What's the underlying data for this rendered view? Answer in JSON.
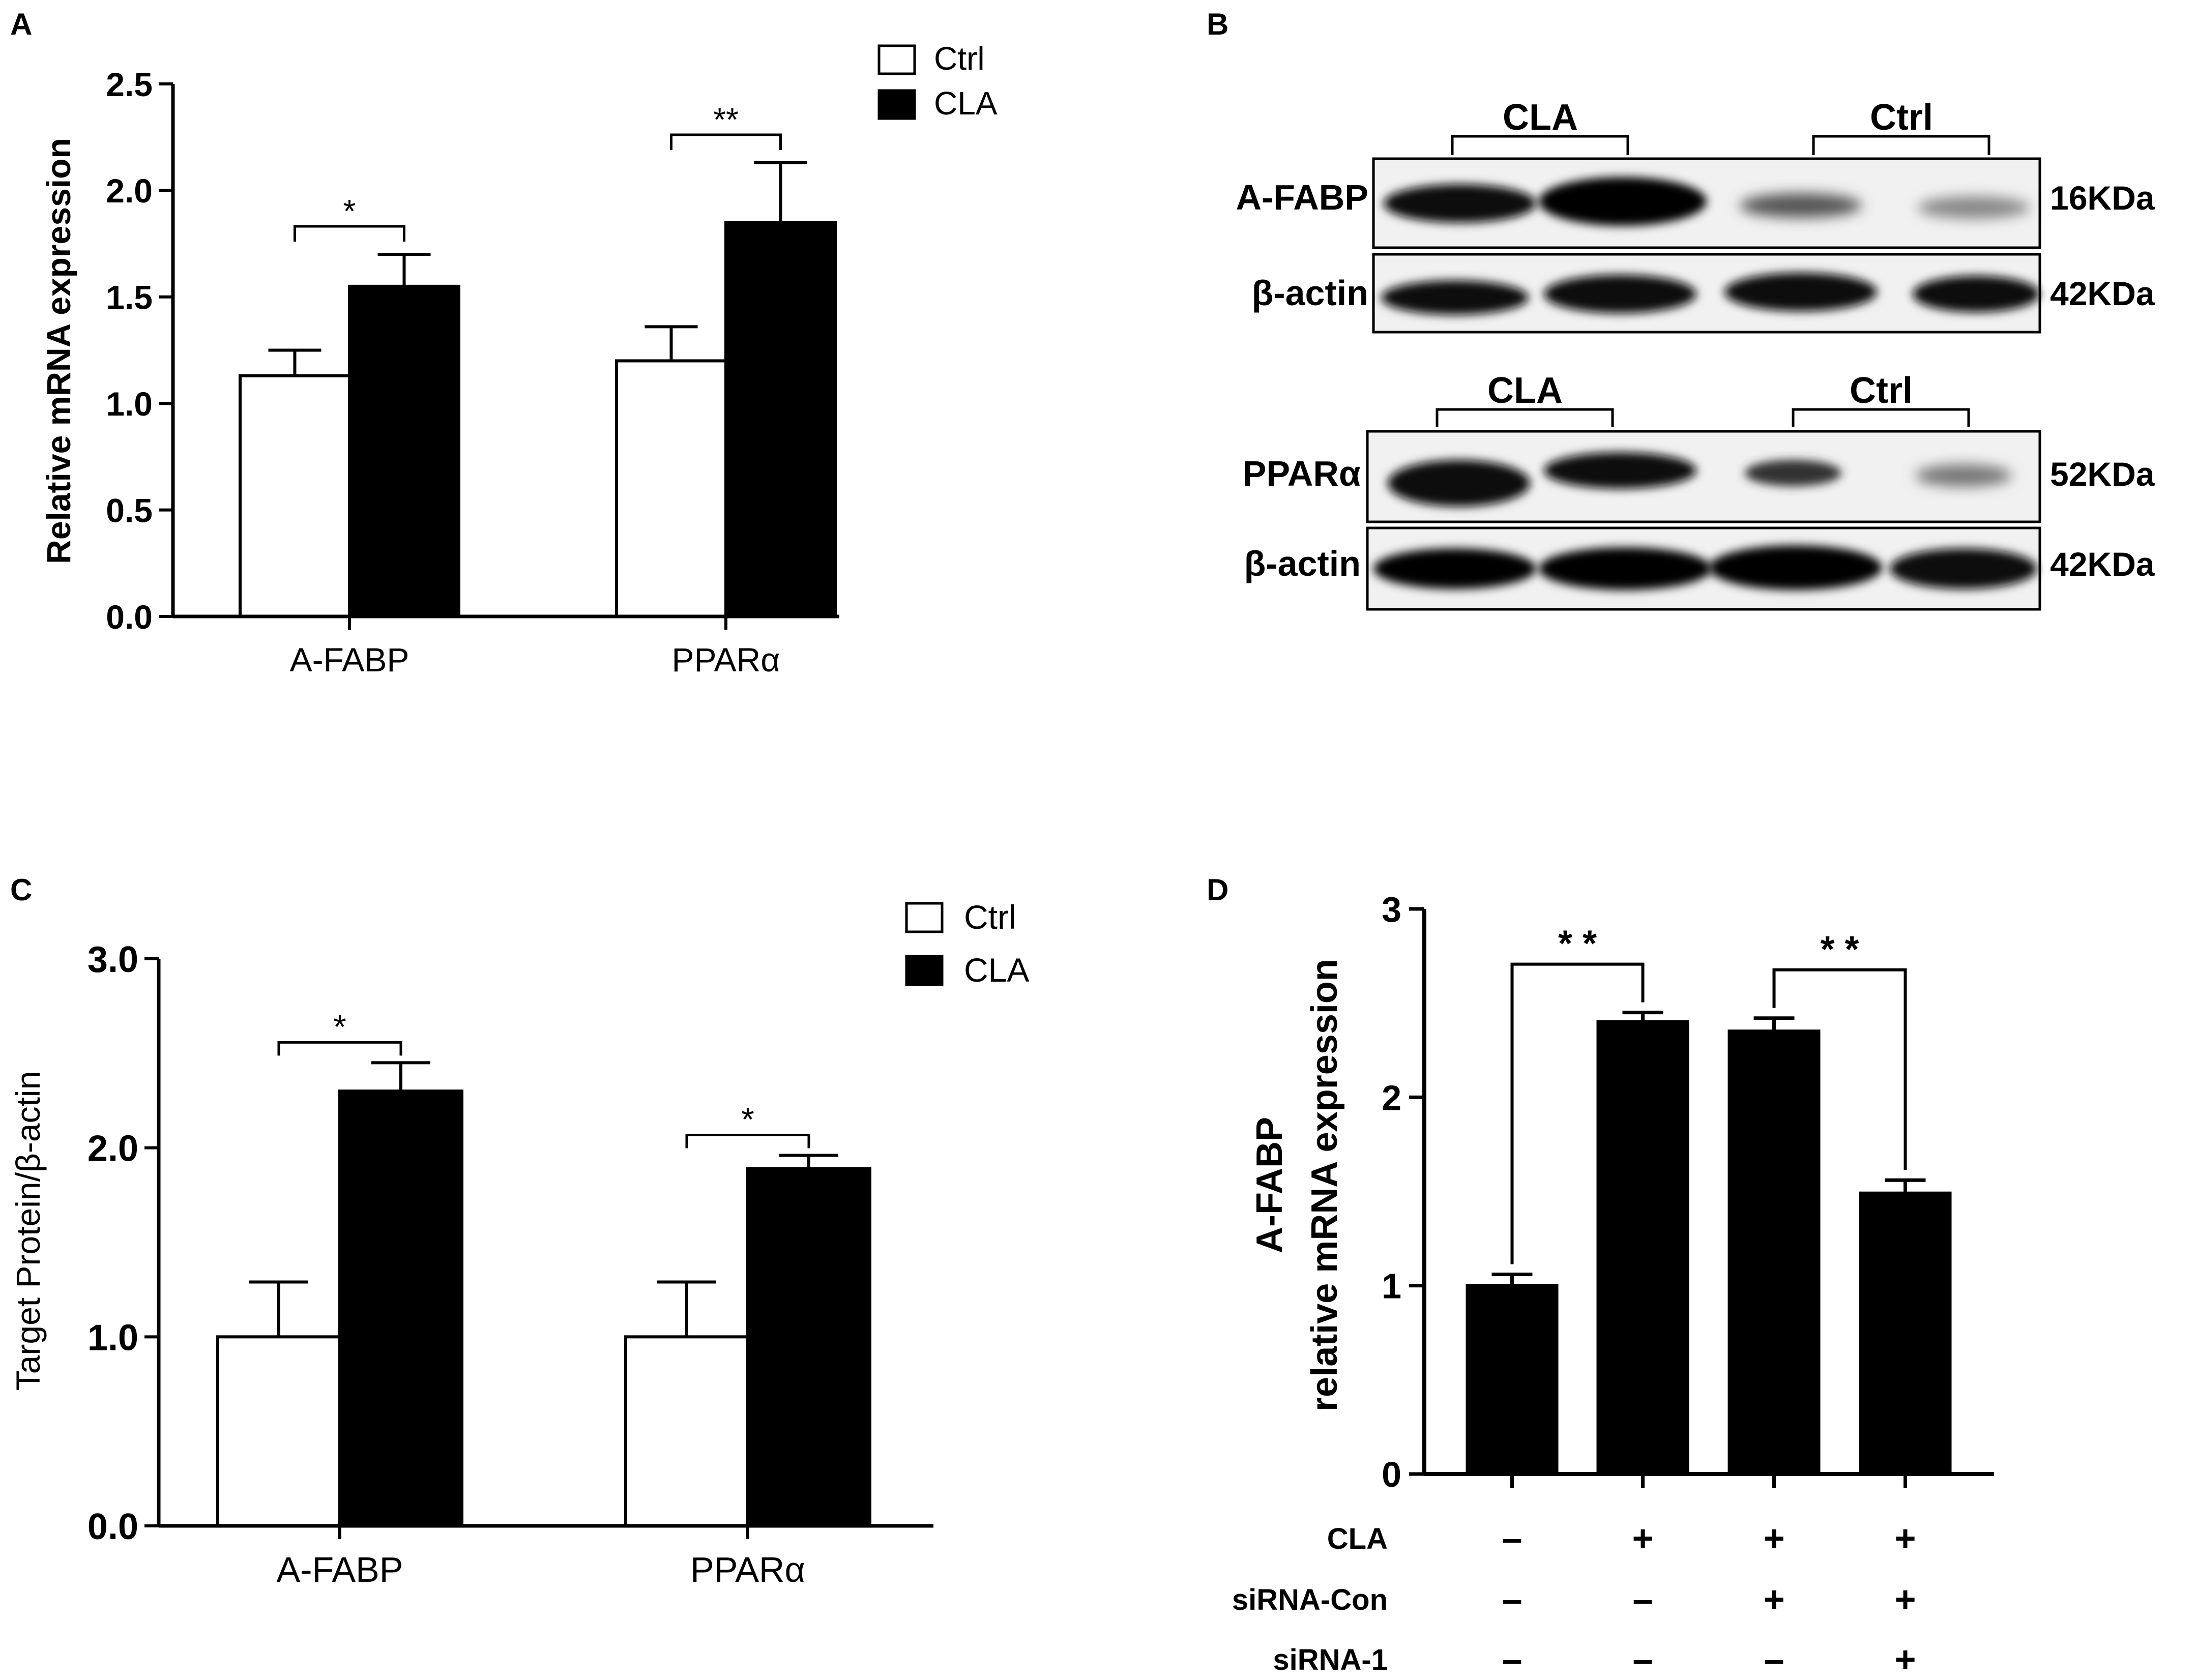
{
  "panels": {
    "A": {
      "letter": "A",
      "chart_data": {
        "type": "bar",
        "categories": [
          "A-FABP",
          "PPARα"
        ],
        "series": [
          {
            "name": "Ctrl",
            "fill": "#ffffff",
            "values": [
              1.13,
              1.2
            ],
            "errors": [
              0.12,
              0.16
            ]
          },
          {
            "name": "CLA",
            "fill": "#000000",
            "values": [
              1.55,
              1.85
            ],
            "errors": [
              0.15,
              0.28
            ]
          }
        ],
        "ylabel": "Relative mRNA expression",
        "ylim": [
          0,
          2.5
        ],
        "yticks": [
          "0.0",
          "0.5",
          "1.0",
          "1.5",
          "2.0",
          "2.5"
        ],
        "significance": [
          "*",
          "**"
        ],
        "legend": [
          "Ctrl",
          "CLA"
        ],
        "legend_position": "top-right",
        "grid": false
      }
    },
    "B": {
      "letter": "B",
      "blot1": {
        "group_left": "CLA",
        "group_right": "Ctrl",
        "row1_label": "A-FABP",
        "row1_size": "16KDa",
        "row2_label": "β-actin",
        "row2_size": "42KDa"
      },
      "blot2": {
        "group_left": "CLA",
        "group_right": "Ctrl",
        "row1_label": "PPARα",
        "row1_size": "52KDa",
        "row2_label": "β-actin",
        "row2_size": "42KDa"
      }
    },
    "C": {
      "letter": "C",
      "chart_data": {
        "type": "bar",
        "categories": [
          "A-FABP",
          "PPARα"
        ],
        "series": [
          {
            "name": "Ctrl",
            "fill": "#ffffff",
            "values": [
              1.0,
              1.0
            ],
            "errors": [
              0.29,
              0.29
            ]
          },
          {
            "name": "CLA",
            "fill": "#000000",
            "values": [
              2.3,
              1.89
            ],
            "errors": [
              0.15,
              0.07
            ]
          }
        ],
        "ylabel": "Target Protein/β-actin",
        "ylim": [
          0,
          3.0
        ],
        "yticks": [
          "0.0",
          "1.0",
          "2.0",
          "3.0"
        ],
        "significance": [
          "*",
          "*"
        ],
        "legend": [
          "Ctrl",
          "CLA"
        ],
        "legend_position": "top-right",
        "grid": false
      }
    },
    "D": {
      "letter": "D",
      "chart_data": {
        "type": "bar",
        "values": [
          1.0,
          2.4,
          2.35,
          1.49
        ],
        "errors": [
          0.06,
          0.05,
          0.07,
          0.07
        ],
        "fill": "#000000",
        "ylabel_line1": "A-FABP",
        "ylabel_line2": "relative mRNA expression",
        "ylim": [
          0,
          3
        ],
        "yticks": [
          "0",
          "1",
          "2",
          "3"
        ],
        "significance": [
          "* *",
          "* *"
        ],
        "conditions": [
          {
            "label": "CLA",
            "marks": [
              "–",
              "+",
              "+",
              "+"
            ]
          },
          {
            "label": "siRNA-Con",
            "marks": [
              "–",
              "–",
              "+",
              "+"
            ]
          },
          {
            "label": "siRNA-1",
            "marks": [
              "–",
              "–",
              "–",
              "+"
            ]
          }
        ],
        "grid": false
      }
    }
  }
}
